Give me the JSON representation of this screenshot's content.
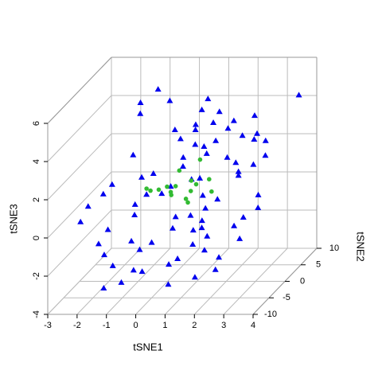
{
  "chart_data": {
    "type": "scatter3d",
    "x_label": "tSNE1",
    "y_label": "tSNE2",
    "z_label": "tSNE3",
    "xlim": [
      -3,
      4
    ],
    "ylim": [
      -10,
      10
    ],
    "zlim": [
      -4,
      6
    ],
    "xticks": [
      -3,
      -2,
      -1,
      0,
      1,
      2,
      3,
      4
    ],
    "yticks": [
      -10,
      -5,
      0,
      5,
      10
    ],
    "zticks": [
      -4,
      -2,
      0,
      2,
      4,
      6
    ],
    "grid": true,
    "series": [
      {
        "color": "#0000ee",
        "marker": "triangle",
        "x": [
          -2.1,
          -1.5,
          -0.8,
          0.2,
          1.1,
          2.0,
          2.8,
          3.3,
          -1.9,
          -0.4,
          0.6,
          1.5,
          2.4,
          -1.2,
          0.0,
          0.9,
          1.8,
          2.9,
          -2.6,
          -1.0,
          0.3,
          1.2,
          2.2,
          3.5,
          -1.7,
          -0.2,
          0.8,
          1.6,
          2.6,
          -0.6,
          0.4,
          1.4,
          2.1,
          -1.4,
          0.1,
          1.0,
          1.9,
          3.0,
          -2.3,
          -0.9,
          0.5,
          1.3,
          2.5,
          -1.1,
          -0.3,
          0.7,
          1.7,
          2.7,
          -1.8,
          -0.5,
          0.2,
          1.1,
          2.3,
          3.2,
          -1.3,
          0.0,
          0.9,
          1.8,
          -0.7,
          0.6,
          1.5,
          2.4,
          -2.0,
          -0.1,
          1.0,
          2.0,
          -1.6,
          0.3,
          1.2,
          2.8,
          -0.4,
          0.8,
          1.6,
          -1.0,
          0.4,
          1.4,
          2.2,
          0.0,
          1.1,
          -0.8
        ],
        "y": [
          -8,
          3,
          -4,
          7,
          0,
          -6,
          5,
          -2,
          9,
          -7,
          2,
          -3,
          6,
          -9,
          1,
          8,
          -5,
          4,
          -1,
          -8,
          6,
          -3,
          2,
          9,
          -6,
          0,
          7,
          -4,
          3,
          -9,
          5,
          -1,
          8,
          -7,
          4,
          -2,
          6,
          -5,
          1,
          9,
          -3,
          7,
          -8,
          2,
          -6,
          5,
          0,
          -4,
          8,
          -2,
          3,
          -7,
          6,
          -1,
          9,
          -5,
          4,
          -8,
          2,
          -3,
          7,
          -6,
          1,
          5,
          -9,
          3,
          -4,
          8,
          0,
          -2,
          6,
          -7,
          4,
          -1,
          9,
          -5,
          2,
          -8,
          5,
          -3
        ],
        "z": [
          0.5,
          2.1,
          -1.2,
          3.0,
          1.4,
          -0.6,
          2.5,
          0.2,
          3.8,
          -2.2,
          1.0,
          -0.3,
          2.7,
          -2.8,
          0.8,
          3.5,
          -1.5,
          1.9,
          0.1,
          -1.8,
          2.9,
          -0.8,
          1.2,
          4.2,
          -1.0,
          0.6,
          3.1,
          -0.5,
          1.6,
          -2.5,
          2.3,
          0.0,
          3.3,
          -1.4,
          1.8,
          -0.2,
          2.6,
          -0.9,
          0.4,
          3.9,
          -0.7,
          2.8,
          -2.0,
          1.1,
          -1.3,
          2.2,
          0.3,
          -0.4,
          3.4,
          0.9,
          1.5,
          -1.6,
          2.4,
          0.7,
          4.5,
          -1.1,
          2.0,
          -2.4,
          1.3,
          -0.1,
          3.2,
          -1.7,
          0.9,
          2.6,
          -2.6,
          1.7,
          -0.6,
          3.6,
          0.5,
          -0.3,
          2.9,
          -1.9,
          1.8,
          0.2,
          4.0,
          -1.2,
          1.4,
          -2.1,
          2.5,
          0.0
        ]
      },
      {
        "color": "#33bb33",
        "marker": "circle",
        "x": [
          -0.5,
          0.0,
          0.4,
          0.8,
          1.2,
          -0.2,
          0.6,
          1.0,
          1.5,
          0.2,
          -0.8,
          0.9,
          1.3,
          0.3,
          -0.3,
          0.7
        ],
        "y": [
          -2,
          1,
          0,
          -1,
          2,
          3,
          -3,
          1,
          0,
          -2,
          2,
          -1,
          -3,
          3,
          0,
          1
        ],
        "z": [
          1.2,
          0.5,
          1.8,
          0.3,
          1.0,
          0.0,
          1.5,
          2.2,
          0.7,
          1.3,
          0.4,
          0.9,
          1.6,
          -0.2,
          0.8,
          1.1
        ]
      }
    ]
  }
}
